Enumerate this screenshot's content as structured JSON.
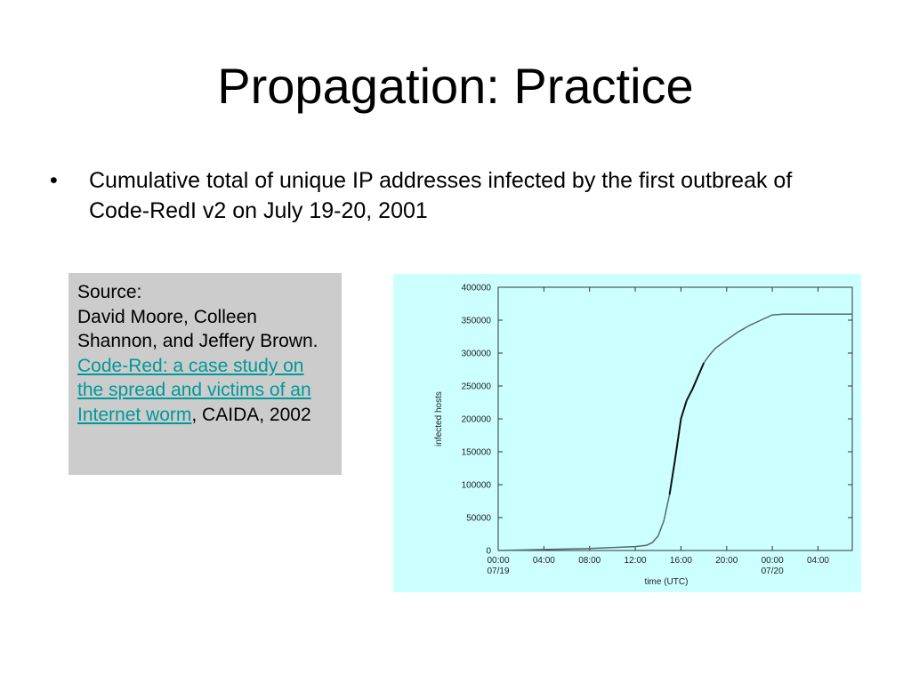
{
  "slide": {
    "title": "Propagation: Practice",
    "bullet": "Cumulative total of unique IP addresses infected by the first outbreak of Code-RedI v2 on July 19-20, 2001"
  },
  "source": {
    "label": "Source:",
    "authors": "David Moore, Colleen Shannon, and Jeffery Brown.",
    "link_text": "Code-Red: a case study on the spread and victims of an Internet worm",
    "suffix": ", CAIDA, 2002"
  },
  "colors": {
    "chart_bg": "#ccffff",
    "link": "#009999",
    "source_bg": "#cccccc"
  },
  "chart_data": {
    "type": "line",
    "title": "",
    "xlabel": "time (UTC)",
    "ylabel": "infected hosts",
    "xlim": [
      0,
      31
    ],
    "ylim": [
      0,
      400000
    ],
    "x_ticks": [
      {
        "value": 0,
        "label": "00:00",
        "sub": "07/19"
      },
      {
        "value": 4,
        "label": "04:00",
        "sub": ""
      },
      {
        "value": 8,
        "label": "08:00",
        "sub": ""
      },
      {
        "value": 12,
        "label": "12:00",
        "sub": ""
      },
      {
        "value": 16,
        "label": "16:00",
        "sub": ""
      },
      {
        "value": 20,
        "label": "20:00",
        "sub": ""
      },
      {
        "value": 24,
        "label": "00:00",
        "sub": "07/20"
      },
      {
        "value": 28,
        "label": "04:00",
        "sub": ""
      }
    ],
    "y_ticks": [
      {
        "value": 0,
        "label": "0"
      },
      {
        "value": 50000,
        "label": "50000"
      },
      {
        "value": 100000,
        "label": "100000"
      },
      {
        "value": 150000,
        "label": "150000"
      },
      {
        "value": 200000,
        "label": "200000"
      },
      {
        "value": 250000,
        "label": "250000"
      },
      {
        "value": 300000,
        "label": "300000"
      },
      {
        "value": 350000,
        "label": "350000"
      },
      {
        "value": 400000,
        "label": "400000"
      }
    ],
    "grid": false,
    "series": [
      {
        "name": "",
        "x": [
          0,
          4,
          8,
          12,
          13,
          13.5,
          14,
          14.5,
          15,
          15.5,
          16,
          16.5,
          17,
          17.5,
          18,
          18.5,
          19,
          20,
          21,
          22,
          23,
          24,
          25,
          28,
          31
        ],
        "y": [
          0,
          1500,
          3000,
          6000,
          8000,
          12000,
          22000,
          45000,
          85000,
          140000,
          200000,
          228000,
          245000,
          265000,
          285000,
          297000,
          307000,
          320000,
          332000,
          342000,
          350000,
          358000,
          359000,
          359000,
          359000
        ]
      }
    ]
  }
}
